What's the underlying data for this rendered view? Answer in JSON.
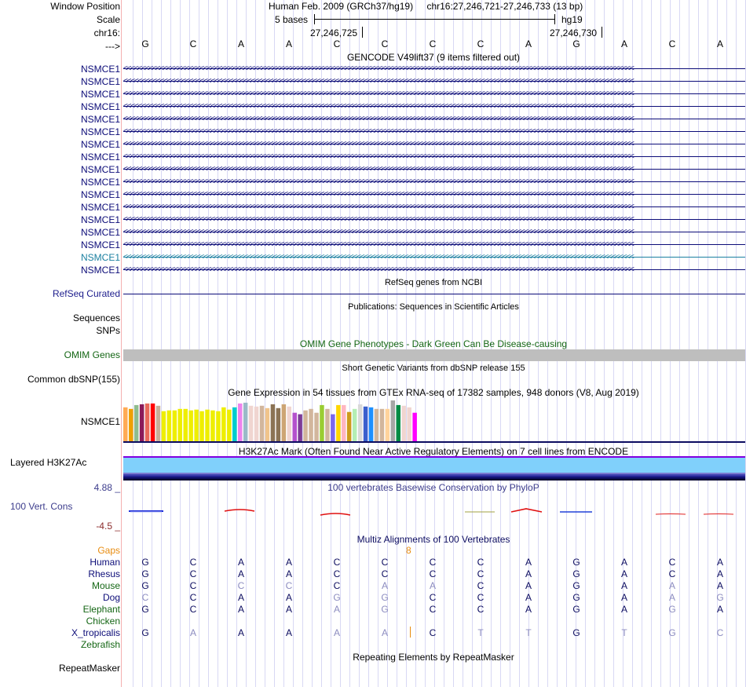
{
  "header": {
    "window_position_label": "Window Position",
    "scale_label": "Scale",
    "chrom_label": "chr16:",
    "strand_label": "--->",
    "assembly": "Human Feb. 2009 (GRCh37/hg19)",
    "position": "chr16:27,246,721-27,246,733 (13 bp)",
    "scale_text": "5 bases",
    "db": "hg19",
    "tick_left": "27,246,725",
    "tick_right": "27,246,730",
    "bases": [
      "G",
      "C",
      "A",
      "A",
      "C",
      "C",
      "C",
      "C",
      "A",
      "G",
      "A",
      "C",
      "A"
    ]
  },
  "gencode": {
    "title": "GENCODE V49lift37 (9 items filtered out)",
    "items": [
      {
        "name": "NSMCE1",
        "color": "#0c0c78"
      },
      {
        "name": "NSMCE1",
        "color": "#0c0c78"
      },
      {
        "name": "NSMCE1",
        "color": "#0c0c78"
      },
      {
        "name": "NSMCE1",
        "color": "#0c0c78"
      },
      {
        "name": "NSMCE1",
        "color": "#0c0c78"
      },
      {
        "name": "NSMCE1",
        "color": "#0c0c78"
      },
      {
        "name": "NSMCE1",
        "color": "#0c0c78"
      },
      {
        "name": "NSMCE1",
        "color": "#0c0c78"
      },
      {
        "name": "NSMCE1",
        "color": "#0c0c78"
      },
      {
        "name": "NSMCE1",
        "color": "#0c0c78"
      },
      {
        "name": "NSMCE1",
        "color": "#0c0c78"
      },
      {
        "name": "NSMCE1",
        "color": "#0c0c78"
      },
      {
        "name": "NSMCE1",
        "color": "#0c0c78"
      },
      {
        "name": "NSMCE1",
        "color": "#0c0c78"
      },
      {
        "name": "NSMCE1",
        "color": "#0c0c78"
      },
      {
        "name": "NSMCE1",
        "color": "#1a7fa0"
      },
      {
        "name": "NSMCE1",
        "color": "#0c0c78"
      }
    ]
  },
  "refseq": {
    "title": "RefSeq genes from NCBI",
    "label": "RefSeq Curated"
  },
  "publications": {
    "title": "Publications: Sequences in Scientific Articles",
    "label1": "Sequences",
    "label2": "SNPs"
  },
  "omim": {
    "title": "OMIM Gene Phenotypes - Dark Green Can Be Disease-causing",
    "label": "OMIM Genes"
  },
  "dbsnp": {
    "title": "Short Genetic Variants from dbSNP release 155",
    "label": "Common dbSNP(155)"
  },
  "gtex": {
    "title": "Gene Expression in 54 tissues from GTEx RNA-seq of 17382 samples, 948 donors (V8, Aug 2019)",
    "label": "NSMCE1"
  },
  "h3k27ac": {
    "title": "H3K27Ac Mark (Often Found Near Active Regulatory Elements) on 7 cell lines from ENCODE",
    "label": "Layered H3K27Ac"
  },
  "phylop": {
    "title": "100 vertebrates Basewise Conservation by PhyloP",
    "label": "100 Vert. Cons",
    "max": "4.88 _",
    "min": "-4.5 _"
  },
  "multiz": {
    "title": "Multiz Alignments of 100 Vertebrates",
    "gaps_label": "Gaps",
    "gap_count": "8",
    "species": [
      {
        "name": "Human",
        "color": "#0c0c78",
        "seq": [
          "G",
          "C",
          "A",
          "A",
          "C",
          "C",
          "C",
          "C",
          "A",
          "G",
          "A",
          "C",
          "A"
        ],
        "diff": [
          0,
          0,
          0,
          0,
          0,
          0,
          0,
          0,
          0,
          0,
          0,
          0,
          0
        ]
      },
      {
        "name": "Rhesus",
        "color": "#0c0c78",
        "seq": [
          "G",
          "C",
          "A",
          "A",
          "C",
          "C",
          "C",
          "C",
          "A",
          "G",
          "A",
          "C",
          "A"
        ],
        "diff": [
          0,
          0,
          0,
          0,
          0,
          0,
          0,
          0,
          0,
          0,
          0,
          0,
          0
        ]
      },
      {
        "name": "Mouse",
        "color": "#146614",
        "seq": [
          "G",
          "C",
          "C",
          "C",
          "C",
          "A",
          "A",
          "C",
          "A",
          "G",
          "A",
          "A",
          "A"
        ],
        "diff": [
          0,
          0,
          1,
          1,
          0,
          1,
          1,
          0,
          0,
          0,
          0,
          1,
          0
        ]
      },
      {
        "name": "Dog",
        "color": "#0c0c78",
        "seq": [
          "C",
          "C",
          "A",
          "A",
          "G",
          "G",
          "C",
          "C",
          "A",
          "G",
          "A",
          "A",
          "G"
        ],
        "diff": [
          1,
          0,
          0,
          0,
          1,
          1,
          0,
          0,
          0,
          0,
          0,
          1,
          1
        ]
      },
      {
        "name": "Elephant",
        "color": "#146614",
        "seq": [
          "G",
          "C",
          "A",
          "A",
          "A",
          "G",
          "C",
          "C",
          "A",
          "G",
          "A",
          "G",
          "A"
        ],
        "diff": [
          0,
          0,
          0,
          0,
          1,
          1,
          0,
          0,
          0,
          0,
          0,
          1,
          0
        ]
      },
      {
        "name": "Chicken",
        "color": "#146614",
        "seq": [],
        "diff": []
      },
      {
        "name": "X_tropicalis",
        "color": "#0c0c78",
        "seq": [
          "G",
          "A",
          "A",
          "A",
          "A",
          "A",
          "C",
          "T",
          "T",
          "G",
          "T",
          "G",
          "C"
        ],
        "diff": [
          0,
          1,
          0,
          0,
          1,
          1,
          0,
          1,
          1,
          0,
          1,
          1,
          1
        ]
      },
      {
        "name": "Zebrafish",
        "color": "#146614",
        "seq": [],
        "diff": []
      }
    ]
  },
  "repeatmasker": {
    "title": "Repeating Elements by RepeatMasker",
    "label": "RepeatMasker"
  },
  "chart_data": {
    "type": "bar",
    "title": "Gene Expression in 54 tissues from GTEx RNA-seq of 17382 samples, 948 donors (V8, Aug 2019)",
    "xlabel": "",
    "ylabel": "",
    "values": [
      44,
      42,
      47,
      48,
      49,
      49,
      46,
      39,
      40,
      40,
      42,
      42,
      40,
      41,
      39,
      41,
      40,
      39,
      44,
      41,
      44,
      49,
      50,
      46,
      45,
      46,
      43,
      48,
      43,
      48,
      45,
      37,
      35,
      40,
      42,
      37,
      47,
      42,
      35,
      47,
      47,
      38,
      42,
      48,
      45,
      44,
      42,
      42,
      42,
      53,
      47,
      46,
      44,
      37
    ],
    "colors": [
      "#ffaa55",
      "#f0a000",
      "#8fbc8f",
      "#8b1a5a",
      "#e8685a",
      "#ff0000",
      "#c8ae98",
      "#eeee00",
      "#eeee00",
      "#eeee00",
      "#eeee00",
      "#eeee00",
      "#eeee00",
      "#eeee00",
      "#eeee00",
      "#eeee00",
      "#eeee00",
      "#eeee00",
      "#eeee00",
      "#eeee00",
      "#00cdcd",
      "#ee82ee",
      "#9ab9c8",
      "#f0d5d0",
      "#f0d5d0",
      "#d2b69c",
      "#f0c48a",
      "#8b7355",
      "#8b7355",
      "#cda574",
      "#f0d5d0",
      "#b452cd",
      "#7d3c98",
      "#d2b69c",
      "#d2b69c",
      "#d2b69c",
      "#9acd32",
      "#d2b69c",
      "#7b68ee",
      "#ffd700",
      "#ffb6c1",
      "#cd9b1d",
      "#b4eeb4",
      "#d9d9d9",
      "#3a5fcd",
      "#1e90ff",
      "#d2b69c",
      "#d2b69c",
      "#ffd39b",
      "#a6a6a6",
      "#008b45",
      "#f0d5d0",
      "#f0d5d0",
      "#ff00ff"
    ],
    "ylim": [
      0,
      55
    ]
  }
}
